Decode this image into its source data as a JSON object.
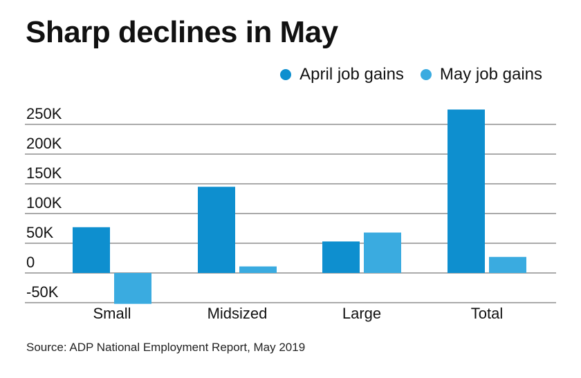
{
  "title": "Sharp declines in May",
  "source": "Source: ADP National Employment Report, May 2019",
  "colors": {
    "april": "#0e8fcf",
    "may": "#3aabe0",
    "grid": "#555555"
  },
  "chart_data": {
    "type": "bar",
    "title": "Sharp declines in May",
    "xlabel": "",
    "ylabel": "",
    "categories": [
      "Small",
      "Midsized",
      "Large",
      "Total"
    ],
    "series": [
      {
        "name": "April job gains",
        "values": [
          77000,
          145000,
          53000,
          275000
        ]
      },
      {
        "name": "May job gains",
        "values": [
          -52000,
          11000,
          68000,
          27000
        ]
      }
    ],
    "ylim": [
      -50000,
      250000
    ],
    "yticks": [
      250000,
      200000,
      150000,
      100000,
      50000,
      0,
      -50000
    ],
    "ytick_labels": [
      "250K",
      "200K",
      "150K",
      "100K",
      "50K",
      "0",
      "-50K"
    ],
    "grid": true,
    "legend_position": "top-right"
  }
}
